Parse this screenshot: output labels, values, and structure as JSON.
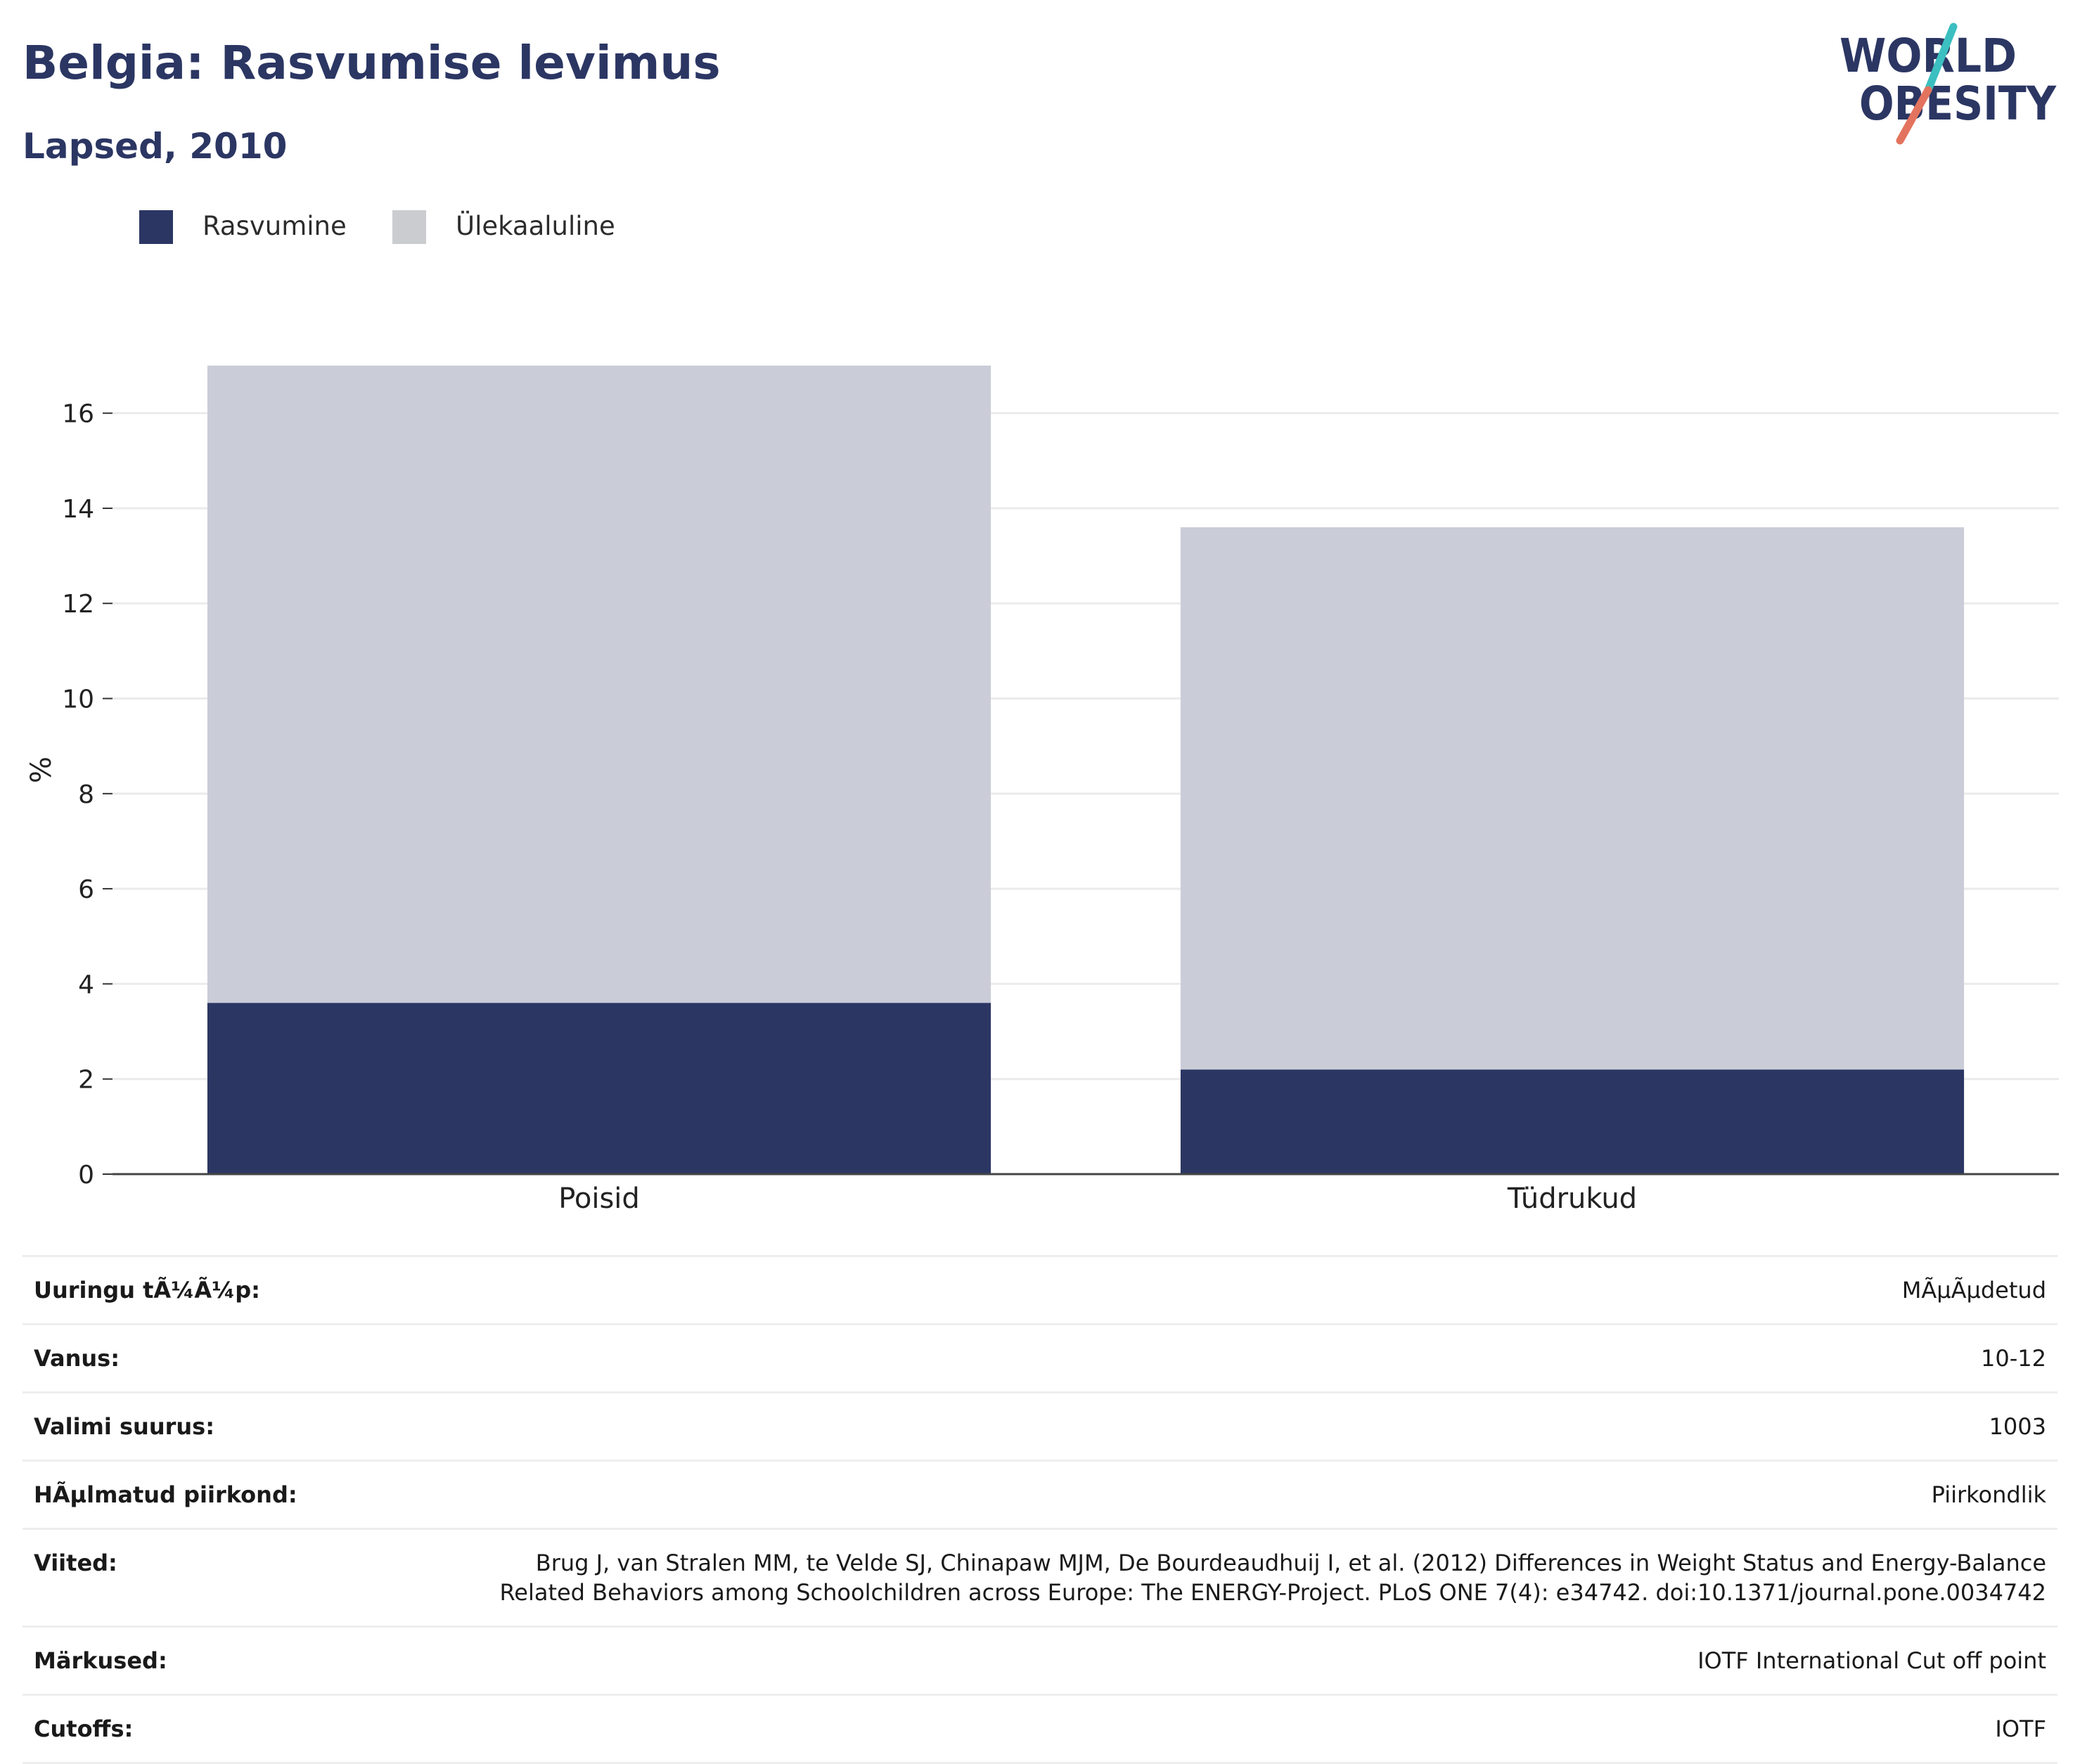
{
  "header": {
    "title": "Belgia: Rasvumise levimus",
    "subtitle": "Lapsed, 2010"
  },
  "logo": {
    "line1": "WORLD",
    "line2": "OBESITY",
    "colors": {
      "navy": "#2b3663",
      "teal": "#3cbfc0",
      "coral": "#e3735e"
    }
  },
  "legend": [
    {
      "label": "Rasvumine",
      "color": "#2b3663"
    },
    {
      "label": "Ülekaaluline",
      "color": "#cacccf"
    }
  ],
  "chart_data": {
    "type": "bar",
    "stacked": true,
    "categories": [
      "Poisid",
      "Tüdrukud"
    ],
    "series": [
      {
        "name": "Rasvumine",
        "color": "#2b3663",
        "values": [
          3.6,
          2.2
        ]
      },
      {
        "name": "Ülekaaluline",
        "color": "#cacdd8",
        "values": [
          13.4,
          11.4
        ]
      }
    ],
    "ylabel": "%",
    "ylim": [
      0,
      17
    ],
    "yticks": [
      0,
      2,
      4,
      6,
      8,
      10,
      12,
      14,
      16
    ],
    "grid": true,
    "legend_position": "top-left"
  },
  "info": [
    {
      "label": "Uuringu tÃ¼Ã¼p:",
      "value": "MÃµÃµdetud"
    },
    {
      "label": "Vanus:",
      "value": "10-12"
    },
    {
      "label": "Valimi suurus:",
      "value": "1003"
    },
    {
      "label": "HÃµlmatud piirkond:",
      "value": "Piirkondlik"
    },
    {
      "label": "Viited:",
      "value": "Brug J, van Stralen MM, te Velde SJ, Chinapaw MJM, De Bourdeaudhuij I, et al. (2012) Differences in Weight Status and Energy-Balance Related Behaviors among Schoolchildren across Europe: The ENERGY-Project. PLoS ONE 7(4): e34742. doi:10.1371/journal.pone.0034742"
    },
    {
      "label": "Märkused:",
      "value": "IOTF International Cut off point"
    },
    {
      "label": "Cutoffs:",
      "value": "IOTF"
    }
  ]
}
